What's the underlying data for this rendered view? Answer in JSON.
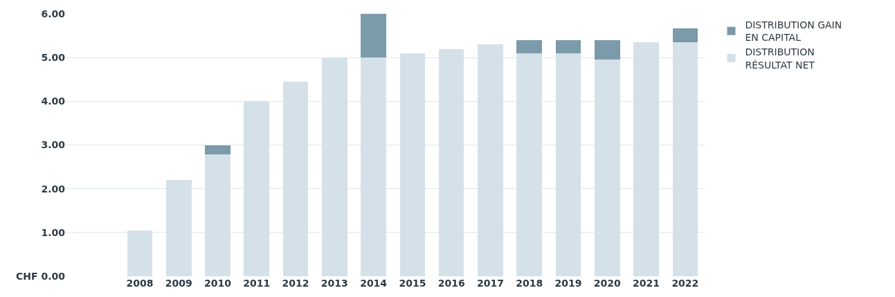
{
  "chart_data": {
    "type": "bar",
    "stacked": true,
    "categories": [
      "2008",
      "2009",
      "2010",
      "2011",
      "2012",
      "2013",
      "2014",
      "2015",
      "2016",
      "2017",
      "2018",
      "2019",
      "2020",
      "2021",
      "2022"
    ],
    "series": [
      {
        "name": "DISTRIBUTION RÉSULTAT NET",
        "color": "#d4e1e8",
        "values": [
          1.05,
          2.2,
          2.78,
          4.0,
          4.45,
          5.0,
          5.0,
          5.1,
          5.2,
          5.3,
          5.1,
          5.1,
          4.95,
          5.35,
          5.35
        ]
      },
      {
        "name": "DISTRIBUTION GAIN EN CAPITAL",
        "color": "#7b9aaa",
        "values": [
          null,
          null,
          0.22,
          null,
          null,
          null,
          1.0,
          null,
          null,
          null,
          0.3,
          0.3,
          0.45,
          null,
          0.32
        ]
      }
    ],
    "ylim": [
      0,
      6
    ],
    "yticks": [
      {
        "value": 0,
        "label": "CHF 0.00"
      },
      {
        "value": 1,
        "label": "1.00"
      },
      {
        "value": 2,
        "label": "2.00"
      },
      {
        "value": 3,
        "label": "3.00"
      },
      {
        "value": 4,
        "label": "4.00"
      },
      {
        "value": 5,
        "label": "5.00"
      },
      {
        "value": 6,
        "label": "6.00"
      }
    ],
    "grid": "y",
    "legend": "top right"
  }
}
